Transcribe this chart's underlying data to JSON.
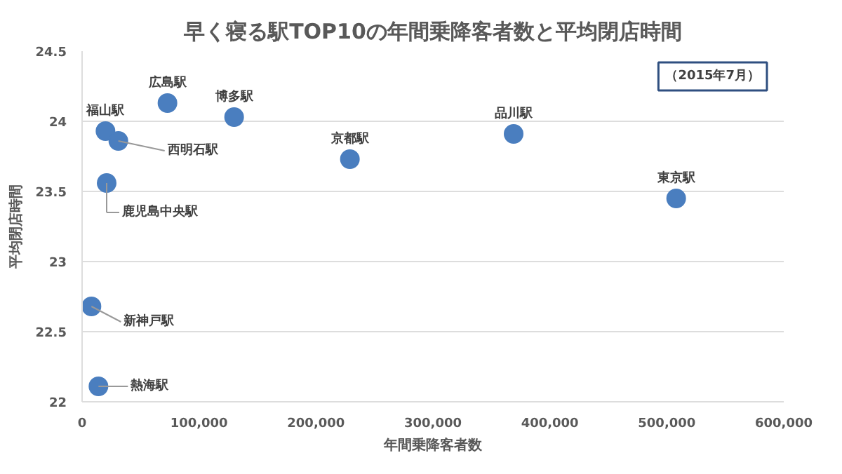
{
  "chart_data": {
    "type": "scatter",
    "title": "早く寝る駅TOP10の年間乗降客者数と平均閉店時間",
    "xlabel": "年間乗降客者数",
    "ylabel": "平均閉店時間",
    "x": [
      20000,
      31000,
      73000,
      130000,
      21000,
      229000,
      8000,
      14000,
      369000,
      508000
    ],
    "series": [
      {
        "color": "#4a7ebf",
        "values": [
          23.93,
          23.86,
          24.13,
          24.03,
          23.56,
          23.73,
          22.68,
          22.11,
          23.91,
          23.45
        ]
      }
    ],
    "xlim": [
      0,
      600000
    ],
    "xticks": [
      {
        "value": 0,
        "label": "0"
      },
      {
        "value": 100000,
        "label": "100,000"
      },
      {
        "value": 200000,
        "label": "200,000"
      },
      {
        "value": 300000,
        "label": "300,000"
      },
      {
        "value": 400000,
        "label": "400,000"
      },
      {
        "value": 500000,
        "label": "500,000"
      },
      {
        "value": 600000,
        "label": "600,000"
      }
    ],
    "ylim": [
      22,
      24.5
    ],
    "yticks": [
      22,
      22.5,
      23,
      23.5,
      24,
      24.5
    ],
    "grid": "y",
    "marker": "circle",
    "annotations": [
      {
        "text": "福山駅",
        "x": 20000,
        "y": 23.93
      },
      {
        "text": "西明石駅",
        "x": 31000,
        "y": 23.86
      },
      {
        "text": "広島駅",
        "x": 73000,
        "y": 24.13
      },
      {
        "text": "博多駅",
        "x": 130000,
        "y": 24.03
      },
      {
        "text": "鹿児島中央駅",
        "x": 21000,
        "y": 23.56
      },
      {
        "text": "京都駅",
        "x": 229000,
        "y": 23.73
      },
      {
        "text": "新神戸駅",
        "x": 8000,
        "y": 22.68
      },
      {
        "text": "熱海駅",
        "x": 14000,
        "y": 22.11
      },
      {
        "text": "品川駅",
        "x": 369000,
        "y": 23.91
      },
      {
        "text": "東京駅",
        "x": 508000,
        "y": 23.45
      },
      "（2015年7月）"
    ]
  }
}
